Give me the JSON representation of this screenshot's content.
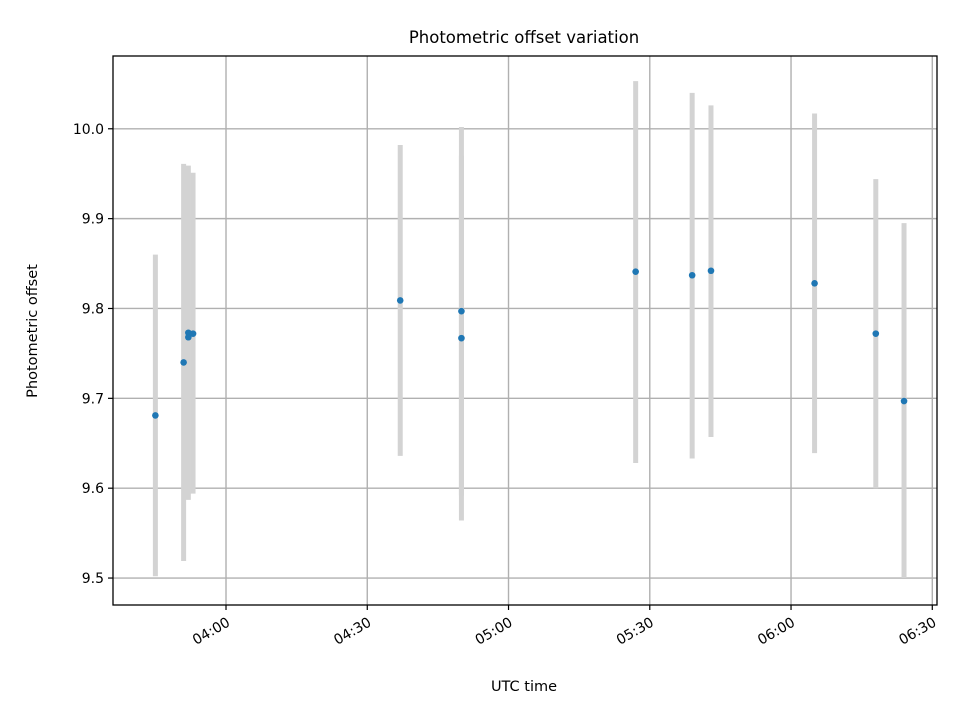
{
  "chart_data": {
    "type": "scatter",
    "title": "Photometric offset variation",
    "xlabel": "UTC time",
    "ylabel": "Photometric offset",
    "x_tick_labels": [
      "04:00",
      "04:30",
      "05:00",
      "05:30",
      "06:00",
      "06:30"
    ],
    "x_ticks": [
      "04:00",
      "04:30",
      "05:00",
      "05:30",
      "06:00",
      "06:30"
    ],
    "y_tick_labels": [
      "9.5",
      "9.6",
      "9.7",
      "9.8",
      "9.9",
      "10.0"
    ],
    "y_ticks": [
      9.5,
      9.6,
      9.7,
      9.8,
      9.9,
      10.0
    ],
    "xlim": [
      "03:36",
      "06:31"
    ],
    "ylim": [
      9.47,
      10.081
    ],
    "grid": true,
    "colors": {
      "point": "#1f77b4",
      "errorbar": "#d3d3d3"
    },
    "points": [
      {
        "x": "03:45",
        "y": 9.681,
        "ylow": 9.502,
        "yhigh": 9.86
      },
      {
        "x": "03:51",
        "y": 9.74,
        "ylow": 9.519,
        "yhigh": 9.961
      },
      {
        "x": "03:52",
        "y": 9.773,
        "ylow": 9.587,
        "yhigh": 9.959
      },
      {
        "x": "03:52",
        "y": 9.768,
        "ylow": 9.594,
        "yhigh": 9.951
      },
      {
        "x": "03:53",
        "y": 9.772,
        "ylow": 9.594,
        "yhigh": 9.951
      },
      {
        "x": "04:37",
        "y": 9.809,
        "ylow": 9.636,
        "yhigh": 9.982
      },
      {
        "x": "04:50",
        "y": 9.797,
        "ylow": 9.592,
        "yhigh": 10.002
      },
      {
        "x": "04:50",
        "y": 9.767,
        "ylow": 9.564,
        "yhigh": 9.97
      },
      {
        "x": "05:27",
        "y": 9.841,
        "ylow": 9.628,
        "yhigh": 10.053
      },
      {
        "x": "05:39",
        "y": 9.837,
        "ylow": 9.633,
        "yhigh": 10.04
      },
      {
        "x": "05:43",
        "y": 9.842,
        "ylow": 9.657,
        "yhigh": 10.026
      },
      {
        "x": "06:05",
        "y": 9.828,
        "ylow": 9.639,
        "yhigh": 10.017
      },
      {
        "x": "06:18",
        "y": 9.772,
        "ylow": 9.6,
        "yhigh": 9.944
      },
      {
        "x": "06:24",
        "y": 9.697,
        "ylow": 9.5,
        "yhigh": 9.895
      }
    ]
  }
}
